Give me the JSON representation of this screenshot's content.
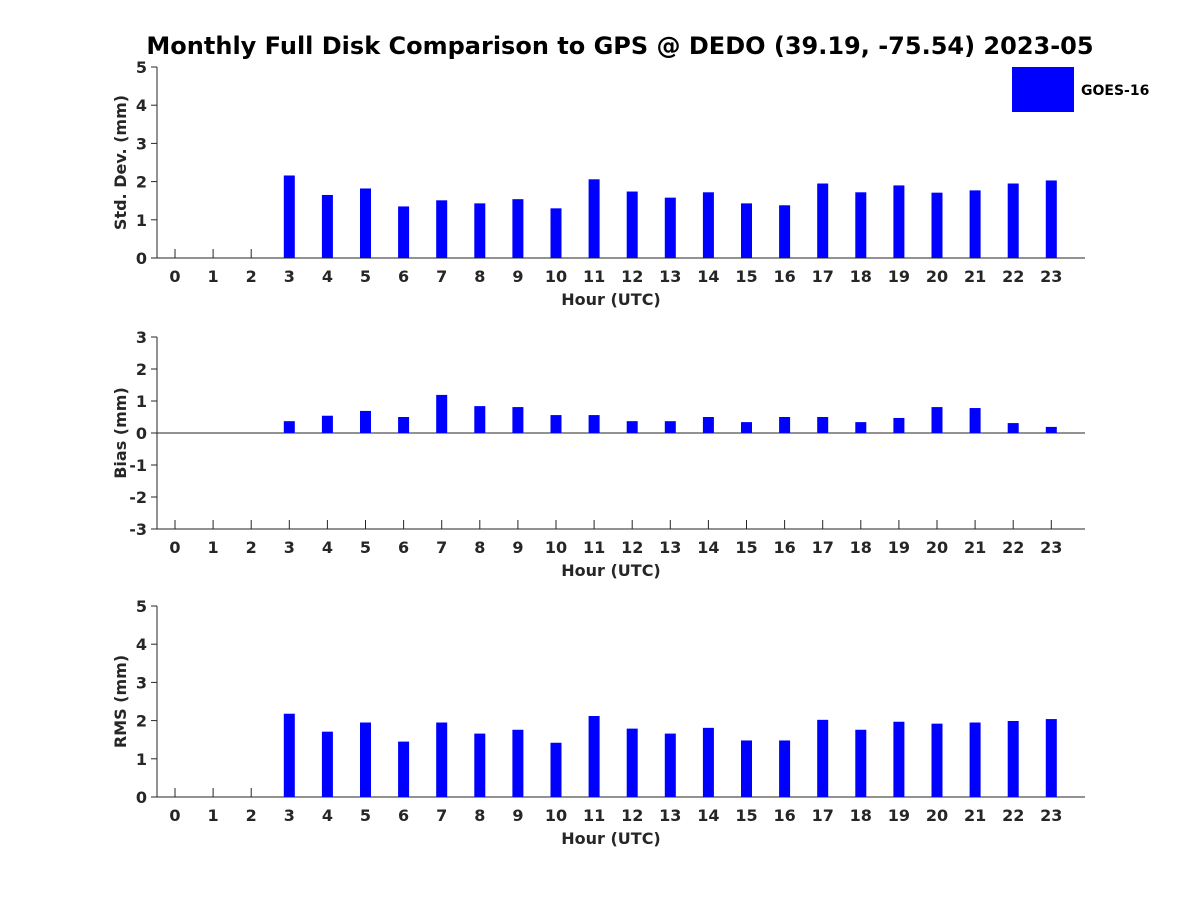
{
  "chart_data": {
    "type": "bar",
    "title": "Monthly Full Disk Comparison to GPS @ DEDO (39.19, -75.54) 2023-05",
    "legend": {
      "entries": [
        "GOES-16"
      ],
      "placement": "top-right"
    },
    "colors": {
      "bar": "#0000ff",
      "axis": "#262626",
      "background": "#ffffff"
    },
    "panels": [
      {
        "name": "std-dev",
        "ylabel": "Std. Dev. (mm)",
        "xlabel": "Hour (UTC)",
        "ylim": [
          0,
          5
        ],
        "yticks": [
          "0",
          "1",
          "2",
          "3",
          "4",
          "5"
        ],
        "categories": [
          "0",
          "1",
          "2",
          "3",
          "4",
          "5",
          "6",
          "7",
          "8",
          "9",
          "10",
          "11",
          "12",
          "13",
          "14",
          "15",
          "16",
          "17",
          "18",
          "19",
          "20",
          "21",
          "22",
          "23"
        ],
        "series": [
          {
            "name": "GOES-16",
            "values": [
              null,
              null,
              null,
              2.16,
              1.65,
              1.82,
              1.35,
              1.51,
              1.43,
              1.54,
              1.3,
              2.06,
              1.74,
              1.58,
              1.72,
              1.43,
              1.38,
              1.95,
              1.72,
              1.9,
              1.71,
              1.77,
              1.95,
              2.03
            ]
          }
        ]
      },
      {
        "name": "bias",
        "ylabel": "Bias (mm)",
        "xlabel": "Hour (UTC)",
        "ylim": [
          -3,
          3
        ],
        "yticks": [
          "-3",
          "-2",
          "-1",
          "0",
          "1",
          "2",
          "3"
        ],
        "categories": [
          "0",
          "1",
          "2",
          "3",
          "4",
          "5",
          "6",
          "7",
          "8",
          "9",
          "10",
          "11",
          "12",
          "13",
          "14",
          "15",
          "16",
          "17",
          "18",
          "19",
          "20",
          "21",
          "22",
          "23"
        ],
        "series": [
          {
            "name": "GOES-16",
            "values": [
              null,
              null,
              null,
              0.37,
              0.54,
              0.69,
              0.5,
              1.19,
              0.84,
              0.81,
              0.56,
              0.56,
              0.37,
              0.37,
              0.5,
              0.34,
              0.5,
              0.5,
              0.34,
              0.47,
              0.81,
              0.78,
              0.31,
              0.19
            ]
          }
        ]
      },
      {
        "name": "rms",
        "ylabel": "RMS (mm)",
        "xlabel": "Hour (UTC)",
        "ylim": [
          0,
          5
        ],
        "yticks": [
          "0",
          "1",
          "2",
          "3",
          "4",
          "5"
        ],
        "categories": [
          "0",
          "1",
          "2",
          "3",
          "4",
          "5",
          "6",
          "7",
          "8",
          "9",
          "10",
          "11",
          "12",
          "13",
          "14",
          "15",
          "16",
          "17",
          "18",
          "19",
          "20",
          "21",
          "22",
          "23"
        ],
        "series": [
          {
            "name": "GOES-16",
            "values": [
              null,
              null,
              null,
              2.18,
              1.71,
              1.95,
              1.45,
              1.95,
              1.66,
              1.76,
              1.42,
              2.12,
              1.79,
              1.66,
              1.81,
              1.48,
              1.48,
              2.02,
              1.76,
              1.97,
              1.92,
              1.95,
              1.99,
              2.04
            ]
          }
        ]
      }
    ]
  }
}
